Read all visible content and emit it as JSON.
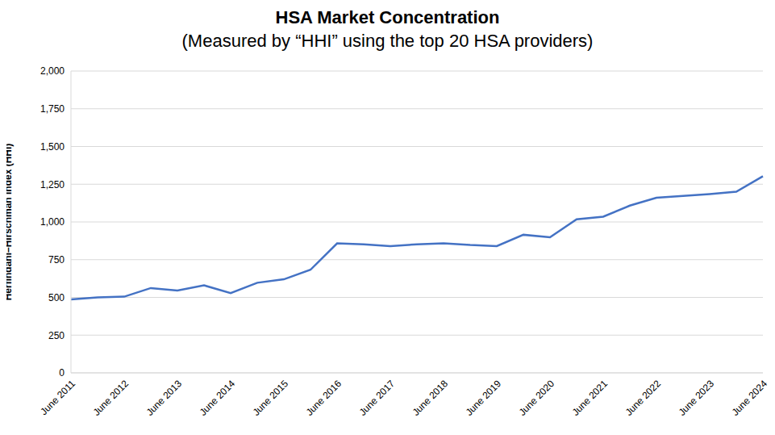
{
  "chart_data": {
    "type": "line",
    "title": "HSA Market Concentration",
    "subtitle": "(Measured by “HHI” using the top 20 HSA providers)",
    "y_label": "Herfindahl–Hirschman Index (HHI)",
    "categories": [
      "June 2011",
      null,
      "June 2012",
      null,
      "June 2013",
      null,
      "June 2014",
      null,
      "June 2015",
      null,
      "June 2016",
      null,
      "June 2017",
      null,
      "June 2018",
      null,
      "June 2019",
      null,
      "June 2020",
      null,
      "June 2021",
      null,
      "June 2022",
      null,
      "June 2023",
      null,
      "June 2024"
    ],
    "values": [
      487,
      500,
      505,
      562,
      545,
      580,
      528,
      597,
      620,
      683,
      858,
      852,
      840,
      852,
      858,
      847,
      840,
      915,
      898,
      1018,
      1035,
      1108,
      1160,
      1173,
      1185,
      1200,
      1303
    ],
    "color": "#4472c4",
    "ylim": [
      0,
      2000
    ],
    "yticks": [
      0,
      250,
      500,
      750,
      {
        "value": 1000,
        "label": "1,000"
      },
      {
        "value": 1250,
        "label": "1,250"
      },
      {
        "value": 1500,
        "label": "1,500"
      },
      {
        "value": 1750,
        "label": "1,750"
      },
      {
        "value": 2000,
        "label": "2,000"
      }
    ],
    "grid": true
  }
}
